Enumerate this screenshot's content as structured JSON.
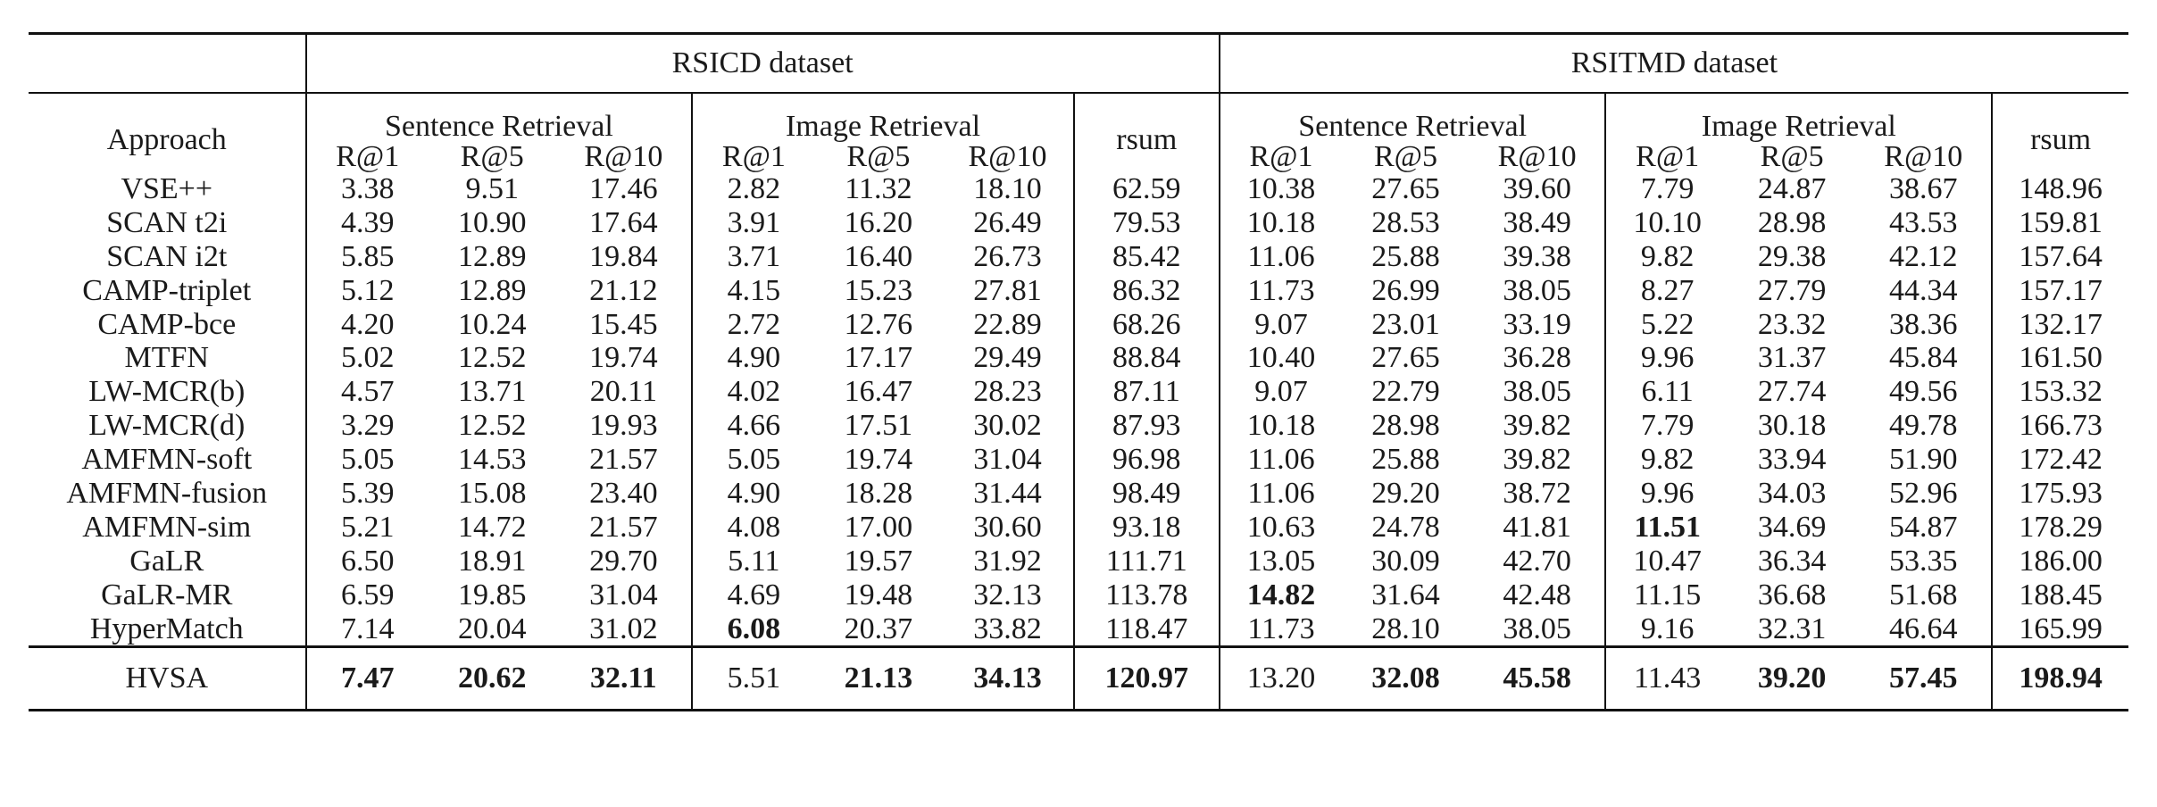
{
  "datasets": [
    "RSICD dataset",
    "RSITMD dataset"
  ],
  "groups": [
    "Sentence Retrieval",
    "Image Retrieval",
    "Sentence Retrieval",
    "Image Retrieval"
  ],
  "approach_header": "Approach",
  "rsum_header": "rsum",
  "metrics": [
    "R@1",
    "R@5",
    "R@10"
  ],
  "rows": [
    {
      "name": "VSE++",
      "v": [
        "3.38",
        "9.51",
        "17.46",
        "2.82",
        "11.32",
        "18.10",
        "62.59",
        "10.38",
        "27.65",
        "39.60",
        "7.79",
        "24.87",
        "38.67",
        "148.96"
      ],
      "bold": []
    },
    {
      "name": "SCAN t2i",
      "v": [
        "4.39",
        "10.90",
        "17.64",
        "3.91",
        "16.20",
        "26.49",
        "79.53",
        "10.18",
        "28.53",
        "38.49",
        "10.10",
        "28.98",
        "43.53",
        "159.81"
      ],
      "bold": []
    },
    {
      "name": "SCAN i2t",
      "v": [
        "5.85",
        "12.89",
        "19.84",
        "3.71",
        "16.40",
        "26.73",
        "85.42",
        "11.06",
        "25.88",
        "39.38",
        "9.82",
        "29.38",
        "42.12",
        "157.64"
      ],
      "bold": []
    },
    {
      "name": "CAMP-triplet",
      "v": [
        "5.12",
        "12.89",
        "21.12",
        "4.15",
        "15.23",
        "27.81",
        "86.32",
        "11.73",
        "26.99",
        "38.05",
        "8.27",
        "27.79",
        "44.34",
        "157.17"
      ],
      "bold": []
    },
    {
      "name": "CAMP-bce",
      "v": [
        "4.20",
        "10.24",
        "15.45",
        "2.72",
        "12.76",
        "22.89",
        "68.26",
        "9.07",
        "23.01",
        "33.19",
        "5.22",
        "23.32",
        "38.36",
        "132.17"
      ],
      "bold": []
    },
    {
      "name": "MTFN",
      "v": [
        "5.02",
        "12.52",
        "19.74",
        "4.90",
        "17.17",
        "29.49",
        "88.84",
        "10.40",
        "27.65",
        "36.28",
        "9.96",
        "31.37",
        "45.84",
        "161.50"
      ],
      "bold": []
    },
    {
      "name": "LW-MCR(b)",
      "v": [
        "4.57",
        "13.71",
        "20.11",
        "4.02",
        "16.47",
        "28.23",
        "87.11",
        "9.07",
        "22.79",
        "38.05",
        "6.11",
        "27.74",
        "49.56",
        "153.32"
      ],
      "bold": []
    },
    {
      "name": "LW-MCR(d)",
      "v": [
        "3.29",
        "12.52",
        "19.93",
        "4.66",
        "17.51",
        "30.02",
        "87.93",
        "10.18",
        "28.98",
        "39.82",
        "7.79",
        "30.18",
        "49.78",
        "166.73"
      ],
      "bold": []
    },
    {
      "name": "AMFMN-soft",
      "v": [
        "5.05",
        "14.53",
        "21.57",
        "5.05",
        "19.74",
        "31.04",
        "96.98",
        "11.06",
        "25.88",
        "39.82",
        "9.82",
        "33.94",
        "51.90",
        "172.42"
      ],
      "bold": []
    },
    {
      "name": "AMFMN-fusion",
      "v": [
        "5.39",
        "15.08",
        "23.40",
        "4.90",
        "18.28",
        "31.44",
        "98.49",
        "11.06",
        "29.20",
        "38.72",
        "9.96",
        "34.03",
        "52.96",
        "175.93"
      ],
      "bold": []
    },
    {
      "name": "AMFMN-sim",
      "v": [
        "5.21",
        "14.72",
        "21.57",
        "4.08",
        "17.00",
        "30.60",
        "93.18",
        "10.63",
        "24.78",
        "41.81",
        "11.51",
        "34.69",
        "54.87",
        "178.29"
      ],
      "bold": [
        10
      ]
    },
    {
      "name": "GaLR",
      "v": [
        "6.50",
        "18.91",
        "29.70",
        "5.11",
        "19.57",
        "31.92",
        "111.71",
        "13.05",
        "30.09",
        "42.70",
        "10.47",
        "36.34",
        "53.35",
        "186.00"
      ],
      "bold": []
    },
    {
      "name": "GaLR-MR",
      "v": [
        "6.59",
        "19.85",
        "31.04",
        "4.69",
        "19.48",
        "32.13",
        "113.78",
        "14.82",
        "31.64",
        "42.48",
        "11.15",
        "36.68",
        "51.68",
        "188.45"
      ],
      "bold": [
        7
      ]
    },
    {
      "name": "HyperMatch",
      "v": [
        "7.14",
        "20.04",
        "31.02",
        "6.08",
        "20.37",
        "33.82",
        "118.47",
        "11.73",
        "28.10",
        "38.05",
        "9.16",
        "32.31",
        "46.64",
        "165.99"
      ],
      "bold": [
        3
      ]
    }
  ],
  "final_row": {
    "name": "HVSA",
    "v": [
      "7.47",
      "20.62",
      "32.11",
      "5.51",
      "21.13",
      "34.13",
      "120.97",
      "13.20",
      "32.08",
      "45.58",
      "11.43",
      "39.20",
      "57.45",
      "198.94"
    ],
    "bold": [
      0,
      1,
      2,
      4,
      5,
      6,
      8,
      9,
      11,
      12,
      13
    ]
  }
}
